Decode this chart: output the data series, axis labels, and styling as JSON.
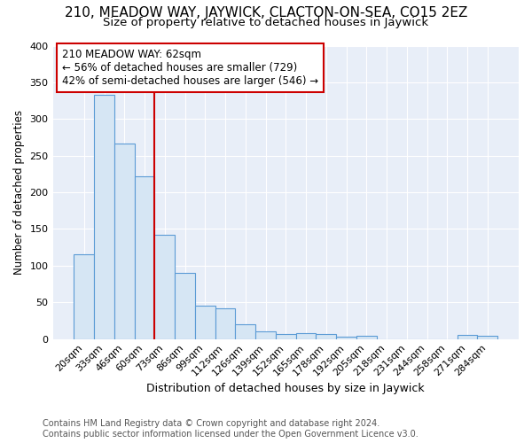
{
  "title": "210, MEADOW WAY, JAYWICK, CLACTON-ON-SEA, CO15 2EZ",
  "subtitle": "Size of property relative to detached houses in Jaywick",
  "xlabel": "Distribution of detached houses by size in Jaywick",
  "ylabel": "Number of detached properties",
  "categories": [
    "20sqm",
    "33sqm",
    "46sqm",
    "60sqm",
    "73sqm",
    "86sqm",
    "99sqm",
    "112sqm",
    "126sqm",
    "139sqm",
    "152sqm",
    "165sqm",
    "178sqm",
    "192sqm",
    "205sqm",
    "218sqm",
    "231sqm",
    "244sqm",
    "258sqm",
    "271sqm",
    "284sqm"
  ],
  "values": [
    115,
    333,
    267,
    222,
    142,
    90,
    45,
    42,
    20,
    10,
    7,
    8,
    7,
    3,
    4,
    0,
    0,
    0,
    0,
    5,
    4
  ],
  "bar_color": "#d6e6f4",
  "bar_edge_color": "#5b9bd5",
  "highlight_index": 3,
  "highlight_line_color": "#cc0000",
  "annotation_text": "210 MEADOW WAY: 62sqm\n← 56% of detached houses are smaller (729)\n42% of semi-detached houses are larger (546) →",
  "annotation_box_edge_color": "#cc0000",
  "ylim": [
    0,
    400
  ],
  "yticks": [
    0,
    50,
    100,
    150,
    200,
    250,
    300,
    350,
    400
  ],
  "grid_color": "#d0daea",
  "background_color": "#e8eef8",
  "footer": "Contains HM Land Registry data © Crown copyright and database right 2024.\nContains public sector information licensed under the Open Government Licence v3.0.",
  "title_fontsize": 11,
  "subtitle_fontsize": 9.5,
  "xlabel_fontsize": 9,
  "ylabel_fontsize": 8.5,
  "tick_fontsize": 8,
  "annotation_fontsize": 8.5,
  "footer_fontsize": 7
}
